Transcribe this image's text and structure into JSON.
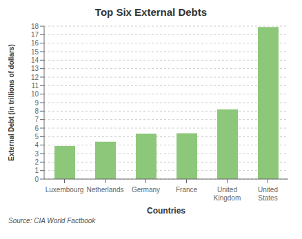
{
  "chart_data": {
    "type": "bar",
    "title": "Top Six External Debts",
    "categories": [
      "Luxembourg",
      "Netherlands",
      "Germany",
      "France",
      "United\nKingdom",
      "United\nStates"
    ],
    "values": [
      3.9,
      4.4,
      5.35,
      5.4,
      8.2,
      17.9
    ],
    "color": "#8DC87A",
    "xlabel": "Countries",
    "ylabel": "External Debt (in trillions of dollars)",
    "ylim": [
      0,
      18
    ],
    "yticks": [
      0,
      1,
      2,
      3,
      4,
      5,
      6,
      7,
      8,
      9,
      10,
      11,
      12,
      13,
      14,
      15,
      16,
      17,
      18
    ],
    "grid": true,
    "annotations": [
      "Source: CIA World Factbook"
    ]
  }
}
